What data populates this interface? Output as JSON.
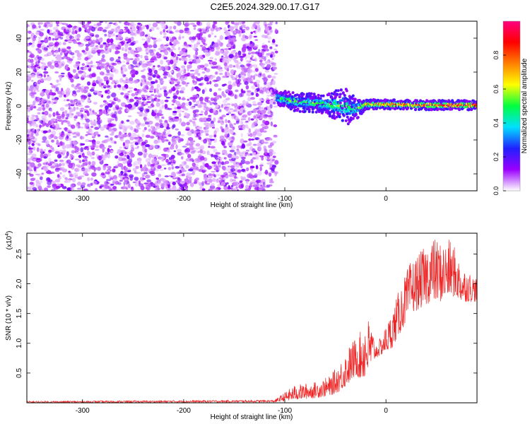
{
  "title": "C2E5.2024.329.00.17.G17",
  "chart_data": [
    {
      "type": "heatmap",
      "xlabel": "Height of straight line (km)",
      "ylabel": "Frequency (Hz)",
      "xlim": [
        -355,
        90
      ],
      "ylim": [
        -50,
        50
      ],
      "xticks": [
        -300,
        -200,
        -100,
        0
      ],
      "yticks": [
        -40,
        -20,
        0,
        20,
        40
      ],
      "noise_region_x": [
        -355,
        -108
      ],
      "signal_trace": [
        {
          "x": -108,
          "center": 5,
          "halfwidth": 3,
          "amp": 0.55
        },
        {
          "x": -95,
          "center": 3,
          "halfwidth": 4,
          "amp": 0.6
        },
        {
          "x": -80,
          "center": 2,
          "halfwidth": 4,
          "amp": 0.55
        },
        {
          "x": -60,
          "center": 1,
          "halfwidth": 4,
          "amp": 0.6
        },
        {
          "x": -40,
          "center": 0,
          "halfwidth": 8,
          "amp": 0.55
        },
        {
          "x": -30,
          "center": -2,
          "halfwidth": 5,
          "amp": 0.5
        },
        {
          "x": -20,
          "center": 1,
          "halfwidth": 2,
          "amp": 0.75
        },
        {
          "x": 0,
          "center": 1,
          "halfwidth": 2,
          "amp": 0.85
        },
        {
          "x": 40,
          "center": 0.5,
          "halfwidth": 2,
          "amp": 0.9
        },
        {
          "x": 90,
          "center": 0.5,
          "halfwidth": 2,
          "amp": 0.95
        }
      ],
      "colorbar": {
        "label": "Normalized spectral amplitude",
        "range": [
          0,
          1
        ],
        "ticks": [
          0.0,
          0.2,
          0.4,
          0.6,
          0.8
        ],
        "stops": [
          "#ffffff",
          "#9b00ff",
          "#2020ff",
          "#00e0ff",
          "#00ff40",
          "#ffff00",
          "#ff8000",
          "#ff0000",
          "#ff0080"
        ]
      }
    },
    {
      "type": "line",
      "xlabel": "Height of straight line (km)",
      "ylabel": "SNR (10 * v/v)",
      "scale_label": "(x10",
      "scale_exponent": "4",
      "scale_close": ")",
      "xlim": [
        -355,
        90
      ],
      "ylim": [
        0,
        2.85
      ],
      "xticks": [
        -300,
        -200,
        -100,
        0
      ],
      "yticks": [
        0.5,
        1.0,
        1.5,
        2.0,
        2.5
      ],
      "ytick_labels": [
        "0.5",
        "1.0",
        "1.5",
        "2.0",
        "2.5"
      ],
      "color": "#ee2222",
      "envelope": {
        "x": [
          -355,
          -110,
          -90,
          -70,
          -55,
          -45,
          -35,
          -30,
          -25,
          -20,
          -15,
          -10,
          -5,
          5,
          15,
          25,
          35,
          45,
          55,
          65,
          75,
          90
        ],
        "base": [
          0.0,
          0.01,
          0.05,
          0.08,
          0.12,
          0.2,
          0.35,
          0.45,
          0.4,
          0.4,
          0.6,
          0.75,
          0.8,
          0.9,
          1.2,
          1.5,
          1.6,
          1.7,
          1.7,
          1.8,
          1.7,
          1.7
        ],
        "peak": [
          0.03,
          0.05,
          0.3,
          0.35,
          0.45,
          0.7,
          1.0,
          1.1,
          1.2,
          1.5,
          1.35,
          1.0,
          1.1,
          1.5,
          2.0,
          2.4,
          2.55,
          2.8,
          2.7,
          2.75,
          2.3,
          2.1
        ]
      }
    }
  ]
}
